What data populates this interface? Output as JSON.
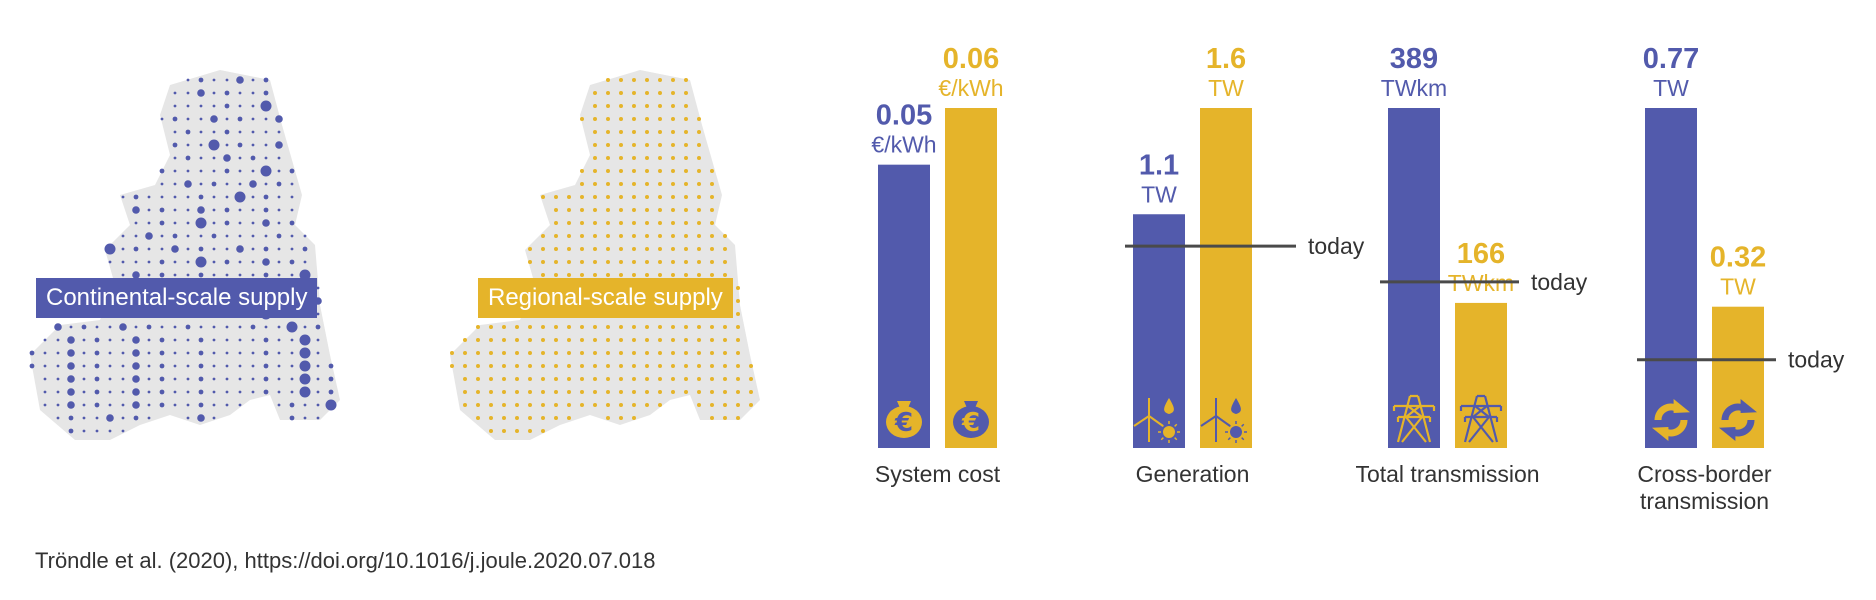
{
  "colors": {
    "continental": "#525aac",
    "regional": "#e5b42a",
    "map_land": "#e6e6e6",
    "today_line": "#4a4a4a",
    "text": "#333333"
  },
  "maps": {
    "continental": {
      "label": "Continental-scale supply",
      "icon": "europe-map-continental"
    },
    "regional": {
      "label": "Regional-scale supply",
      "icon": "europe-map-regional"
    }
  },
  "chart_data": {
    "type": "bar",
    "series": [
      {
        "name": "Continental-scale supply",
        "color": "#525aac"
      },
      {
        "name": "Regional-scale supply",
        "color": "#e5b42a"
      }
    ],
    "groups": [
      {
        "category": "System cost",
        "values": [
          0.05,
          0.06
        ],
        "value_labels": [
          "0.05",
          "0.06"
        ],
        "unit": "€/kWh",
        "today": null,
        "today_label": "",
        "icon": "money-bag-euro-icon"
      },
      {
        "category": "Generation",
        "values": [
          1.1,
          1.6
        ],
        "value_labels": [
          "1.1",
          "1.6"
        ],
        "unit": "TW",
        "today": 0.95,
        "today_label": "today",
        "icon": "wind-hydro-solar-icon"
      },
      {
        "category": "Total transmission",
        "values": [
          389,
          166
        ],
        "value_labels": [
          "389",
          "166"
        ],
        "unit": "TWkm",
        "today": 190,
        "today_label": "today",
        "icon": "transmission-tower-icon"
      },
      {
        "category": "Cross-border transmission",
        "values": [
          0.77,
          0.32
        ],
        "value_labels": [
          "0.77",
          "0.32"
        ],
        "unit": "TW",
        "today": 0.2,
        "today_label": "today",
        "icon": "exchange-arrows-icon"
      }
    ]
  },
  "citation": "Tröndle et al. (2020), https://doi.org/10.1016/j.joule.2020.07.018"
}
